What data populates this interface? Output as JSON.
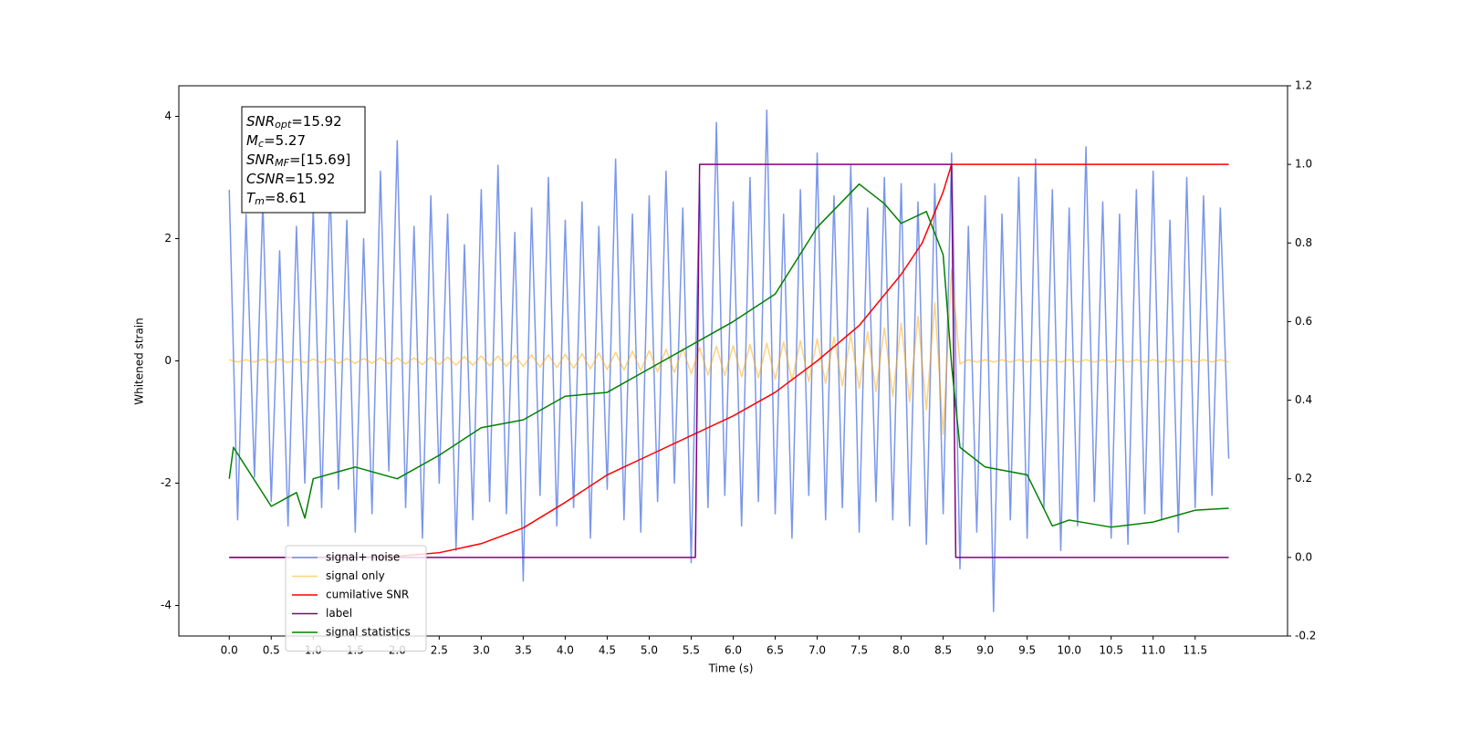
{
  "chart_data": {
    "type": "line",
    "xlabel": "Time (s)",
    "ylabel": "Whitened strain",
    "xlim": [
      -0.6,
      12.6
    ],
    "ylim": [
      -4.5,
      4.5
    ],
    "y2lim": [
      -0.2,
      1.2
    ],
    "xticks": [
      {
        "value": 0,
        "label": "0.0"
      },
      0.5,
      {
        "value": 1,
        "label": "1.0"
      },
      1.5,
      {
        "value": 2,
        "label": "2.0"
      },
      2.5,
      {
        "value": 3,
        "label": "3.0"
      },
      3.5,
      {
        "value": 4,
        "label": "4.0"
      },
      4.5,
      {
        "value": 5,
        "label": "5.0"
      },
      5.5,
      {
        "value": 6,
        "label": "6.0"
      },
      6.5,
      {
        "value": 7,
        "label": "7.0"
      },
      7.5,
      {
        "value": 8,
        "label": "8.0"
      },
      8.5,
      {
        "value": 9,
        "label": "9.0"
      },
      9.5,
      {
        "value": 10,
        "label": "10.0"
      },
      10.5,
      {
        "value": 11,
        "label": "11.0"
      },
      11.5
    ],
    "yticks": [
      -4,
      -2,
      0,
      2,
      4
    ],
    "y2ticks": [
      -0.2,
      {
        "value": 0,
        "label": "0.0"
      },
      0.2,
      0.4,
      0.6,
      0.8,
      {
        "value": 1,
        "label": "1.0"
      },
      1.2
    ],
    "legend": "lower left",
    "annotations": [
      {
        "text": "SNR",
        "sub": "opt",
        "rest": "=15.92"
      },
      {
        "text": "M",
        "sub": "c",
        "rest": "=5.27"
      },
      {
        "text": "SNR",
        "sub": "MF",
        "rest": "=[15.69]"
      },
      {
        "text": "CSNR",
        "rest": "=15.92"
      },
      {
        "text": "T",
        "sub": "m",
        "rest": "=8.61"
      }
    ],
    "x": [
      0.0,
      0.1,
      0.2,
      0.3,
      0.4,
      0.5,
      0.6,
      0.7,
      0.8,
      0.9,
      1.0,
      1.1,
      1.2,
      1.3,
      1.4,
      1.5,
      1.6,
      1.7,
      1.8,
      1.9,
      2.0,
      2.1,
      2.2,
      2.3,
      2.4,
      2.5,
      2.6,
      2.7,
      2.8,
      2.9,
      3.0,
      3.1,
      3.2,
      3.3,
      3.4,
      3.5,
      3.6,
      3.7,
      3.8,
      3.9,
      4.0,
      4.1,
      4.2,
      4.3,
      4.4,
      4.5,
      4.6,
      4.7,
      4.8,
      4.9,
      5.0,
      5.1,
      5.2,
      5.3,
      5.4,
      5.5,
      5.6,
      5.7,
      5.8,
      5.9,
      6.0,
      6.1,
      6.2,
      6.3,
      6.4,
      6.5,
      6.6,
      6.7,
      6.8,
      6.9,
      7.0,
      7.1,
      7.2,
      7.3,
      7.4,
      7.5,
      7.6,
      7.7,
      7.8,
      7.9,
      8.0,
      8.1,
      8.2,
      8.3,
      8.4,
      8.5,
      8.6,
      8.7,
      8.8,
      8.9,
      9.0,
      9.1,
      9.2,
      9.3,
      9.4,
      9.5,
      9.6,
      9.7,
      9.8,
      9.9,
      10.0,
      10.1,
      10.2,
      10.3,
      10.4,
      10.5,
      10.6,
      10.7,
      10.8,
      10.9,
      11.0,
      11.1,
      11.2,
      11.3,
      11.4,
      11.5,
      11.6,
      11.7,
      11.8,
      11.9
    ],
    "series": [
      {
        "name": "signal+ noise",
        "color": "royalblue",
        "alpha": 0.7,
        "values": [
          2.8,
          -2.6,
          2.4,
          -1.9,
          2.6,
          -2.3,
          1.8,
          -2.7,
          2.2,
          -2.0,
          2.5,
          -2.4,
          2.9,
          -2.1,
          2.3,
          -2.8,
          2.0,
          -2.5,
          3.1,
          -1.8,
          3.6,
          -2.4,
          2.2,
          -2.9,
          2.7,
          -2.0,
          2.4,
          -3.1,
          1.9,
          -2.6,
          2.8,
          -2.3,
          3.2,
          -2.5,
          2.1,
          -3.6,
          2.5,
          -2.2,
          3.0,
          -2.7,
          2.3,
          -2.4,
          2.6,
          -2.9,
          2.2,
          -2.1,
          3.3,
          -2.6,
          2.4,
          -2.8,
          2.7,
          -2.3,
          3.1,
          -2.0,
          2.5,
          -3.3,
          2.9,
          -2.4,
          3.9,
          -2.2,
          2.6,
          -2.7,
          3.0,
          -2.3,
          4.1,
          -2.5,
          2.4,
          -2.9,
          2.8,
          -2.2,
          3.4,
          -2.6,
          2.7,
          -2.4,
          3.2,
          -2.8,
          2.5,
          -2.3,
          3.0,
          -2.6,
          2.9,
          -2.7,
          2.6,
          -3.0,
          2.9,
          -2.5,
          3.4,
          -3.4,
          2.2,
          -2.8,
          2.7,
          -4.1,
          2.4,
          -2.6,
          3.0,
          -2.9,
          3.3,
          -2.4,
          2.8,
          -3.1,
          2.5,
          -2.7,
          3.5,
          -2.3,
          2.6,
          -2.9,
          2.4,
          -3.0,
          2.8,
          -2.5,
          3.1,
          -2.6,
          2.3,
          -2.8,
          3.0,
          -2.4,
          2.7,
          -2.2,
          2.5,
          -1.6
        ]
      },
      {
        "name": "signal only",
        "color": "orange",
        "alpha": 0.5,
        "values": [
          0.02,
          -0.02,
          0.02,
          -0.02,
          0.03,
          -0.03,
          0.03,
          -0.03,
          0.03,
          -0.03,
          0.03,
          -0.03,
          0.04,
          -0.04,
          0.04,
          -0.04,
          0.04,
          -0.04,
          0.05,
          -0.05,
          0.05,
          -0.05,
          0.05,
          -0.06,
          0.06,
          -0.06,
          0.06,
          -0.07,
          0.07,
          -0.07,
          0.08,
          -0.08,
          0.08,
          -0.09,
          0.09,
          -0.09,
          0.1,
          -0.1,
          0.1,
          -0.11,
          0.11,
          -0.12,
          0.12,
          -0.13,
          0.13,
          -0.14,
          0.14,
          -0.15,
          0.16,
          -0.16,
          0.17,
          -0.18,
          0.19,
          -0.19,
          0.2,
          -0.21,
          0.22,
          -0.23,
          0.24,
          -0.24,
          0.25,
          -0.26,
          0.27,
          -0.28,
          0.29,
          -0.3,
          0.31,
          -0.32,
          0.33,
          -0.34,
          0.36,
          -0.37,
          0.39,
          -0.41,
          0.43,
          -0.45,
          0.48,
          -0.5,
          0.54,
          -0.58,
          0.62,
          -0.67,
          0.73,
          -0.8,
          0.95,
          -1.2,
          1.5,
          -0.05,
          0.02,
          -0.02,
          0.02,
          -0.02,
          0.02,
          -0.02,
          0.02,
          -0.02,
          0.02,
          -0.02,
          0.02,
          -0.02,
          0.02,
          -0.02,
          0.02,
          -0.02,
          0.02,
          -0.02,
          0.02,
          -0.02,
          0.02,
          -0.02,
          0.02,
          -0.02,
          0.02,
          -0.02,
          0.02,
          -0.02,
          0.02,
          -0.02,
          0.02,
          -0.02
        ]
      },
      {
        "name": "cumilative SNR",
        "color": "red",
        "axis": "y2",
        "x": [
          0,
          1.5,
          2.0,
          2.5,
          3.0,
          3.5,
          4.0,
          4.5,
          5.0,
          5.5,
          6.0,
          6.5,
          7.0,
          7.5,
          8.0,
          8.25,
          8.5,
          8.6,
          11.9
        ],
        "values": [
          0,
          0,
          0.003,
          0.012,
          0.035,
          0.075,
          0.14,
          0.21,
          0.26,
          0.31,
          0.36,
          0.42,
          0.5,
          0.59,
          0.72,
          0.8,
          0.93,
          1,
          1
        ]
      },
      {
        "name": "label",
        "color": "purple",
        "axis": "y2",
        "x": [
          0,
          5.55,
          5.6,
          8.6,
          8.65,
          11.9
        ],
        "values": [
          0,
          0,
          1,
          1,
          0,
          0
        ]
      },
      {
        "name": "signal statistics",
        "color": "green",
        "axis": "y2",
        "x": [
          0,
          0.05,
          0.5,
          0.8,
          0.9,
          1.0,
          1.5,
          2.0,
          2.5,
          3.0,
          3.5,
          4.0,
          4.5,
          5.0,
          5.5,
          6.0,
          6.5,
          7.0,
          7.5,
          7.8,
          8.0,
          8.3,
          8.5,
          8.6,
          8.7,
          9.0,
          9.5,
          9.8,
          10.0,
          10.5,
          11.0,
          11.5,
          11.9
        ],
        "values": [
          0.2,
          0.28,
          0.13,
          0.165,
          0.1,
          0.2,
          0.23,
          0.2,
          0.26,
          0.33,
          0.35,
          0.41,
          0.42,
          0.48,
          0.54,
          0.6,
          0.67,
          0.84,
          0.95,
          0.9,
          0.85,
          0.88,
          0.77,
          0.49,
          0.28,
          0.23,
          0.21,
          0.08,
          0.095,
          0.077,
          0.09,
          0.12,
          0.125
        ]
      }
    ]
  }
}
